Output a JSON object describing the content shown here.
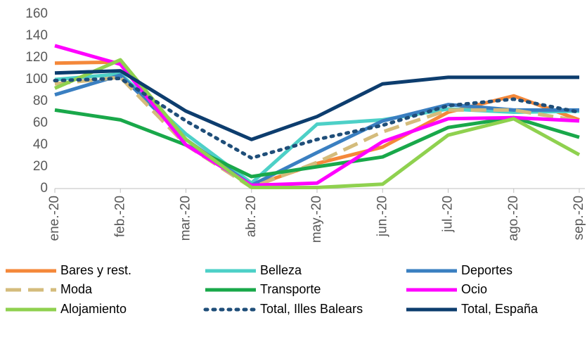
{
  "chart_data": {
    "type": "line",
    "categories": [
      "ene.-20",
      "feb.-20",
      "mar.-20",
      "abr.-20",
      "may.-20",
      "jun.-20",
      "jul.-20",
      "ago.-20",
      "sep.-20"
    ],
    "ylim": [
      0,
      160
    ],
    "yticks": [
      0,
      20,
      40,
      60,
      80,
      100,
      120,
      140,
      160
    ],
    "grid": false,
    "series": [
      {
        "name": "Bares y rest.",
        "color": "#f4883a",
        "dash": "solid",
        "values": [
          115,
          116,
          45,
          2,
          23,
          38,
          70,
          85,
          63
        ]
      },
      {
        "name": "Belleza",
        "color": "#4dd0c7",
        "dash": "solid",
        "values": [
          100,
          105,
          50,
          5,
          59,
          63,
          73,
          70,
          71
        ]
      },
      {
        "name": "Deportes",
        "color": "#3a7fc1",
        "dash": "solid",
        "values": [
          86,
          104,
          45,
          3,
          33,
          62,
          77,
          72,
          72
        ]
      },
      {
        "name": "Moda",
        "color": "#d4bc7c",
        "dash": "dashed",
        "values": [
          96,
          102,
          40,
          1,
          24,
          52,
          72,
          72,
          62
        ]
      },
      {
        "name": "Transporte",
        "color": "#19a84a",
        "dash": "solid",
        "values": [
          72,
          63,
          40,
          11,
          20,
          29,
          56,
          65,
          47
        ]
      },
      {
        "name": "Ocio",
        "color": "#ff00ff",
        "dash": "solid",
        "values": [
          131,
          114,
          40,
          3,
          5,
          43,
          64,
          65,
          62
        ]
      },
      {
        "name": "Alojamiento",
        "color": "#8fd14f",
        "dash": "solid",
        "values": [
          92,
          118,
          45,
          1,
          1,
          4,
          49,
          64,
          31
        ]
      },
      {
        "name": "Total, Illes Balears",
        "color": "#1f4e79",
        "dash": "dotted",
        "values": [
          99,
          101,
          62,
          28,
          45,
          58,
          76,
          82,
          70
        ]
      },
      {
        "name": "Total, España",
        "color": "#0d3d6e",
        "dash": "solid",
        "values": [
          106,
          108,
          71,
          45,
          66,
          96,
          102,
          102,
          102
        ]
      }
    ]
  }
}
